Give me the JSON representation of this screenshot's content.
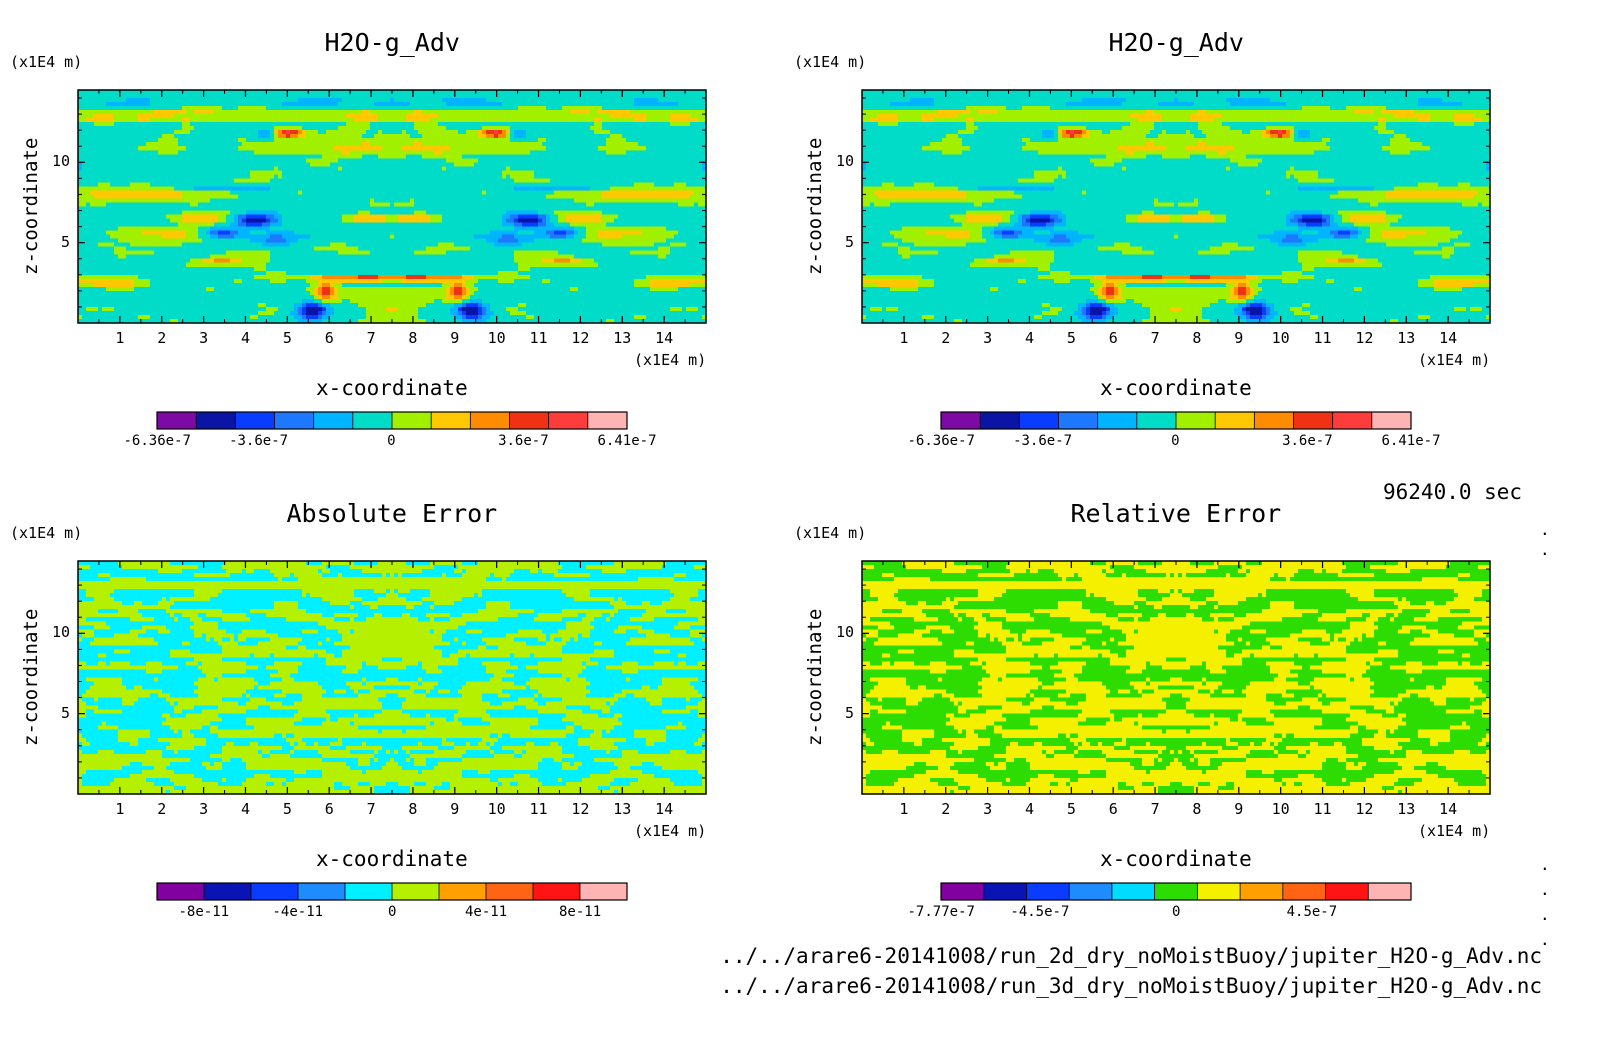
{
  "colormap": {
    "field": [
      "#7d0aa5",
      "#0a14a5",
      "#0a3cff",
      "#1e78ff",
      "#00b4ff",
      "#00dcc8",
      "#a0f000",
      "#ffc800",
      "#ff8c00",
      "#f03214",
      "#ff3c3c",
      "#ffb4b4"
    ],
    "abs": [
      "#8200a0",
      "#0a14b4",
      "#0a3cff",
      "#1e8cff",
      "#00f0ff",
      "#b4f000",
      "#ffa000",
      "#ff6414",
      "#ff1414",
      "#ffb4b4"
    ],
    "rel": [
      "#8200a0",
      "#0a14b4",
      "#0a3cff",
      "#1e8cff",
      "#00dcff",
      "#2ddc00",
      "#f5f000",
      "#ffa000",
      "#ff6414",
      "#ff1414",
      "#ffb4b4"
    ]
  },
  "chart_data": [
    {
      "type": "heatmap",
      "title": "H2O-g_Adv",
      "xlabel": "x-coordinate",
      "ylabel": "z-coordinate",
      "x_unit": "(x1E4 m)",
      "y_unit": "(x1E4 m)",
      "xlim": [
        0,
        15
      ],
      "ylim": [
        0,
        14.5
      ],
      "x_ticks": [
        "1",
        "2",
        "3",
        "4",
        "5",
        "6",
        "7",
        "8",
        "9",
        "10",
        "11",
        "12",
        "13",
        "14"
      ],
      "y_ticks": [
        "5",
        "10"
      ],
      "colorbar_labels": [
        "-6.36e-7",
        "-3.6e-7",
        "0",
        "3.6e-7",
        "6.41e-7"
      ],
      "colorbar_range": [
        -6.36e-07,
        6.41e-07
      ],
      "pattern": "field",
      "palette": "field",
      "dominant_values": "0 (cyan) with positive bands (green) and localized extremes near x=5.5, 10, z=6-7 and z=1-3"
    },
    {
      "type": "heatmap",
      "title": "H2O-g_Adv",
      "xlabel": "x-coordinate",
      "ylabel": "z-coordinate",
      "x_unit": "(x1E4 m)",
      "y_unit": "(x1E4 m)",
      "xlim": [
        0,
        15
      ],
      "ylim": [
        0,
        14.5
      ],
      "x_ticks": [
        "1",
        "2",
        "3",
        "4",
        "5",
        "6",
        "7",
        "8",
        "9",
        "10",
        "11",
        "12",
        "13",
        "14"
      ],
      "y_ticks": [
        "5",
        "10"
      ],
      "colorbar_labels": [
        "-6.36e-7",
        "-3.6e-7",
        "0",
        "3.6e-7",
        "6.41e-7"
      ],
      "colorbar_range": [
        -6.36e-07,
        6.41e-07
      ],
      "pattern": "field",
      "palette": "field",
      "time_label": "96240.0 sec"
    },
    {
      "type": "heatmap",
      "title": "Absolute Error",
      "xlabel": "x-coordinate",
      "ylabel": "z-coordinate",
      "x_unit": "(x1E4 m)",
      "y_unit": "(x1E4 m)",
      "xlim": [
        0,
        15
      ],
      "ylim": [
        0,
        14.5
      ],
      "x_ticks": [
        "1",
        "2",
        "3",
        "4",
        "5",
        "6",
        "7",
        "8",
        "9",
        "10",
        "11",
        "12",
        "13",
        "14"
      ],
      "y_ticks": [
        "5",
        "10"
      ],
      "colorbar_labels": [
        "-8e-11",
        "-4e-11",
        "0",
        "4e-11",
        "8e-11"
      ],
      "colorbar_range": [
        -1e-10,
        1e-10
      ],
      "pattern": "error",
      "palette": "abs",
      "colors_used": [
        "#00f0ff",
        "#b4f000"
      ]
    },
    {
      "type": "heatmap",
      "title": "Relative Error",
      "xlabel": "x-coordinate",
      "ylabel": "z-coordinate",
      "x_unit": "(x1E4 m)",
      "y_unit": "(x1E4 m)",
      "xlim": [
        0,
        15
      ],
      "ylim": [
        0,
        14.5
      ],
      "x_ticks": [
        "1",
        "2",
        "3",
        "4",
        "5",
        "6",
        "7",
        "8",
        "9",
        "10",
        "11",
        "12",
        "13",
        "14"
      ],
      "y_ticks": [
        "5",
        "10"
      ],
      "colorbar_labels": [
        "-7.77e-7",
        "-4.5e-7",
        "0",
        "4.5e-7"
      ],
      "colorbar_range": [
        -7.77e-07,
        7.77e-07
      ],
      "pattern": "error",
      "palette": "rel",
      "colors_used": [
        "#2ddc00",
        "#f5f000"
      ]
    }
  ],
  "footer": {
    "line1": "../../arare6-20141008/run_2d_dry_noMoistBuoy/jupiter_H2O-g_Adv.nc",
    "line2": "../../arare6-20141008/run_3d_dry_noMoistBuoy/jupiter_H2O-g_Adv.nc"
  }
}
